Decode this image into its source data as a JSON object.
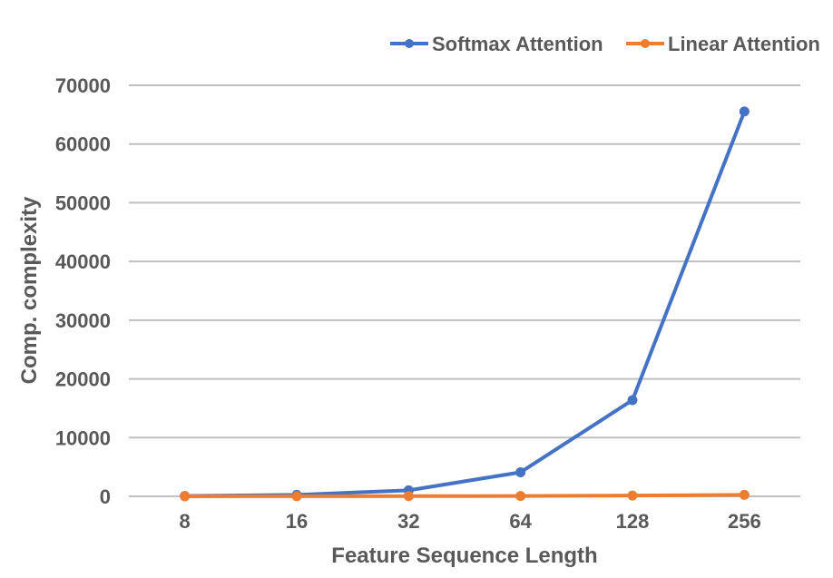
{
  "chart_data": {
    "type": "line",
    "title": "",
    "xlabel": "Feature Sequence Length",
    "ylabel": "Comp. complexity",
    "categories": [
      "8",
      "16",
      "32",
      "64",
      "128",
      "256"
    ],
    "yticks": [
      "0",
      "10000",
      "20000",
      "30000",
      "40000",
      "50000",
      "60000",
      "70000"
    ],
    "ylim": [
      0,
      70000
    ],
    "grid": true,
    "legend_position": "top-right",
    "series": [
      {
        "name": "Softmax Attention",
        "color": "#4472c4",
        "values": [
          64,
          256,
          1024,
          4096,
          16384,
          65536
        ]
      },
      {
        "name": "Linear Attention",
        "color": "#ed7d31",
        "values": [
          8,
          16,
          32,
          64,
          128,
          256
        ]
      }
    ]
  }
}
